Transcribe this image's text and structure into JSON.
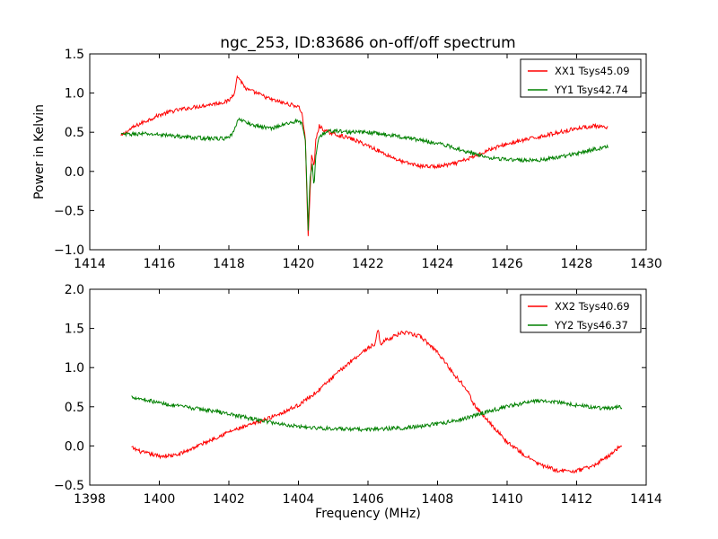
{
  "chart_data": [
    {
      "type": "line",
      "title": "ngc_253, ID:83686 on-off/off spectrum",
      "xlabel": "",
      "ylabel": "Power in Kelvin",
      "xlim": [
        1414,
        1430
      ],
      "ylim": [
        -1.0,
        1.5
      ],
      "xticks": [
        1414,
        1416,
        1418,
        1420,
        1422,
        1424,
        1426,
        1428,
        1430
      ],
      "yticks": [
        -1.0,
        -0.5,
        0.0,
        0.5,
        1.0,
        1.5
      ],
      "xtick_labels": [
        "1414",
        "1416",
        "1418",
        "1420",
        "1422",
        "1424",
        "1426",
        "1428",
        "1430"
      ],
      "ytick_labels": [
        "−1.0",
        "−0.5",
        "0.0",
        "0.5",
        "1.0",
        "1.5"
      ],
      "legend": "top-right",
      "grid": false,
      "series": [
        {
          "name": "XX1 Tsys45.09",
          "color": "#ff0000",
          "x": [
            1414.9,
            1415.2,
            1415.5,
            1415.8,
            1416.0,
            1416.3,
            1416.6,
            1417.0,
            1417.4,
            1417.8,
            1418.0,
            1418.15,
            1418.25,
            1418.35,
            1418.5,
            1418.8,
            1419.2,
            1419.6,
            1420.0,
            1420.1,
            1420.2,
            1420.28,
            1420.33,
            1420.38,
            1420.45,
            1420.5,
            1420.6,
            1420.75,
            1421.0,
            1421.5,
            1422.0,
            1422.5,
            1423.0,
            1423.5,
            1424.0,
            1424.5,
            1425.0,
            1425.5,
            1426.0,
            1426.5,
            1427.0,
            1427.5,
            1428.0,
            1428.5,
            1428.9
          ],
          "y": [
            0.45,
            0.55,
            0.62,
            0.68,
            0.72,
            0.76,
            0.79,
            0.82,
            0.85,
            0.88,
            0.9,
            1.0,
            1.22,
            1.15,
            1.05,
            1.0,
            0.92,
            0.87,
            0.83,
            0.75,
            0.4,
            -0.85,
            -0.3,
            0.2,
            0.05,
            0.4,
            0.58,
            0.52,
            0.48,
            0.42,
            0.33,
            0.22,
            0.12,
            0.07,
            0.06,
            0.1,
            0.18,
            0.28,
            0.35,
            0.4,
            0.45,
            0.5,
            0.55,
            0.58,
            0.55
          ]
        },
        {
          "name": "YY1 Tsys42.74",
          "color": "#008000",
          "x": [
            1414.9,
            1415.5,
            1416.0,
            1416.5,
            1417.0,
            1417.5,
            1418.0,
            1418.15,
            1418.3,
            1418.5,
            1418.8,
            1419.2,
            1419.6,
            1420.0,
            1420.1,
            1420.2,
            1420.28,
            1420.33,
            1420.4,
            1420.45,
            1420.5,
            1420.6,
            1420.8,
            1421.0,
            1421.5,
            1422.0,
            1422.5,
            1423.0,
            1423.5,
            1424.0,
            1424.5,
            1425.0,
            1425.5,
            1426.0,
            1426.5,
            1427.0,
            1427.5,
            1428.0,
            1428.5,
            1428.9
          ],
          "y": [
            0.47,
            0.48,
            0.47,
            0.45,
            0.43,
            0.42,
            0.42,
            0.52,
            0.68,
            0.62,
            0.58,
            0.55,
            0.6,
            0.65,
            0.6,
            0.4,
            -0.75,
            -0.1,
            0.1,
            -0.2,
            0.2,
            0.45,
            0.5,
            0.52,
            0.5,
            0.5,
            0.47,
            0.44,
            0.4,
            0.36,
            0.3,
            0.23,
            0.18,
            0.15,
            0.14,
            0.15,
            0.18,
            0.23,
            0.28,
            0.32
          ]
        }
      ]
    },
    {
      "type": "line",
      "title": "",
      "xlabel": "Frequency (MHz)",
      "ylabel": "",
      "xlim": [
        1398,
        1414
      ],
      "ylim": [
        -0.5,
        2.0
      ],
      "xticks": [
        1398,
        1400,
        1402,
        1404,
        1406,
        1408,
        1410,
        1412,
        1414
      ],
      "yticks": [
        -0.5,
        0.0,
        0.5,
        1.0,
        1.5,
        2.0
      ],
      "xtick_labels": [
        "1398",
        "1400",
        "1402",
        "1404",
        "1406",
        "1408",
        "1410",
        "1412",
        "1414"
      ],
      "ytick_labels": [
        "−0.5",
        "0.0",
        "0.5",
        "1.0",
        "1.5",
        "2.0"
      ],
      "legend": "top-right",
      "grid": false,
      "series": [
        {
          "name": "XX2 Tsys40.69",
          "color": "#ff0000",
          "x": [
            1399.2,
            1399.5,
            1400.0,
            1400.5,
            1401.0,
            1401.5,
            1402.0,
            1402.5,
            1403.0,
            1403.5,
            1404.0,
            1404.5,
            1405.0,
            1405.5,
            1406.0,
            1406.2,
            1406.3,
            1406.35,
            1406.5,
            1407.0,
            1407.5,
            1408.0,
            1408.5,
            1408.9,
            1409.0,
            1409.5,
            1410.0,
            1410.5,
            1411.0,
            1411.5,
            1412.0,
            1412.5,
            1413.0,
            1413.3
          ],
          "y": [
            -0.02,
            -0.08,
            -0.13,
            -0.12,
            -0.02,
            0.08,
            0.18,
            0.25,
            0.33,
            0.42,
            0.52,
            0.68,
            0.88,
            1.08,
            1.25,
            1.3,
            1.5,
            1.3,
            1.35,
            1.45,
            1.4,
            1.2,
            0.9,
            0.7,
            0.55,
            0.3,
            0.05,
            -0.12,
            -0.25,
            -0.32,
            -0.32,
            -0.25,
            -0.1,
            0.02
          ]
        },
        {
          "name": "YY2 Tsys46.37",
          "color": "#008000",
          "x": [
            1399.2,
            1399.5,
            1400.0,
            1400.5,
            1401.0,
            1401.5,
            1402.0,
            1402.5,
            1403.0,
            1403.5,
            1404.0,
            1404.5,
            1405.0,
            1405.5,
            1406.0,
            1406.5,
            1407.0,
            1407.5,
            1408.0,
            1408.5,
            1409.0,
            1409.5,
            1410.0,
            1410.5,
            1411.0,
            1411.5,
            1412.0,
            1412.5,
            1413.0,
            1413.3
          ],
          "y": [
            0.63,
            0.6,
            0.55,
            0.51,
            0.48,
            0.45,
            0.41,
            0.36,
            0.32,
            0.28,
            0.25,
            0.23,
            0.22,
            0.21,
            0.21,
            0.22,
            0.23,
            0.25,
            0.28,
            0.32,
            0.38,
            0.45,
            0.5,
            0.55,
            0.58,
            0.56,
            0.52,
            0.49,
            0.48,
            0.5
          ]
        }
      ]
    }
  ]
}
